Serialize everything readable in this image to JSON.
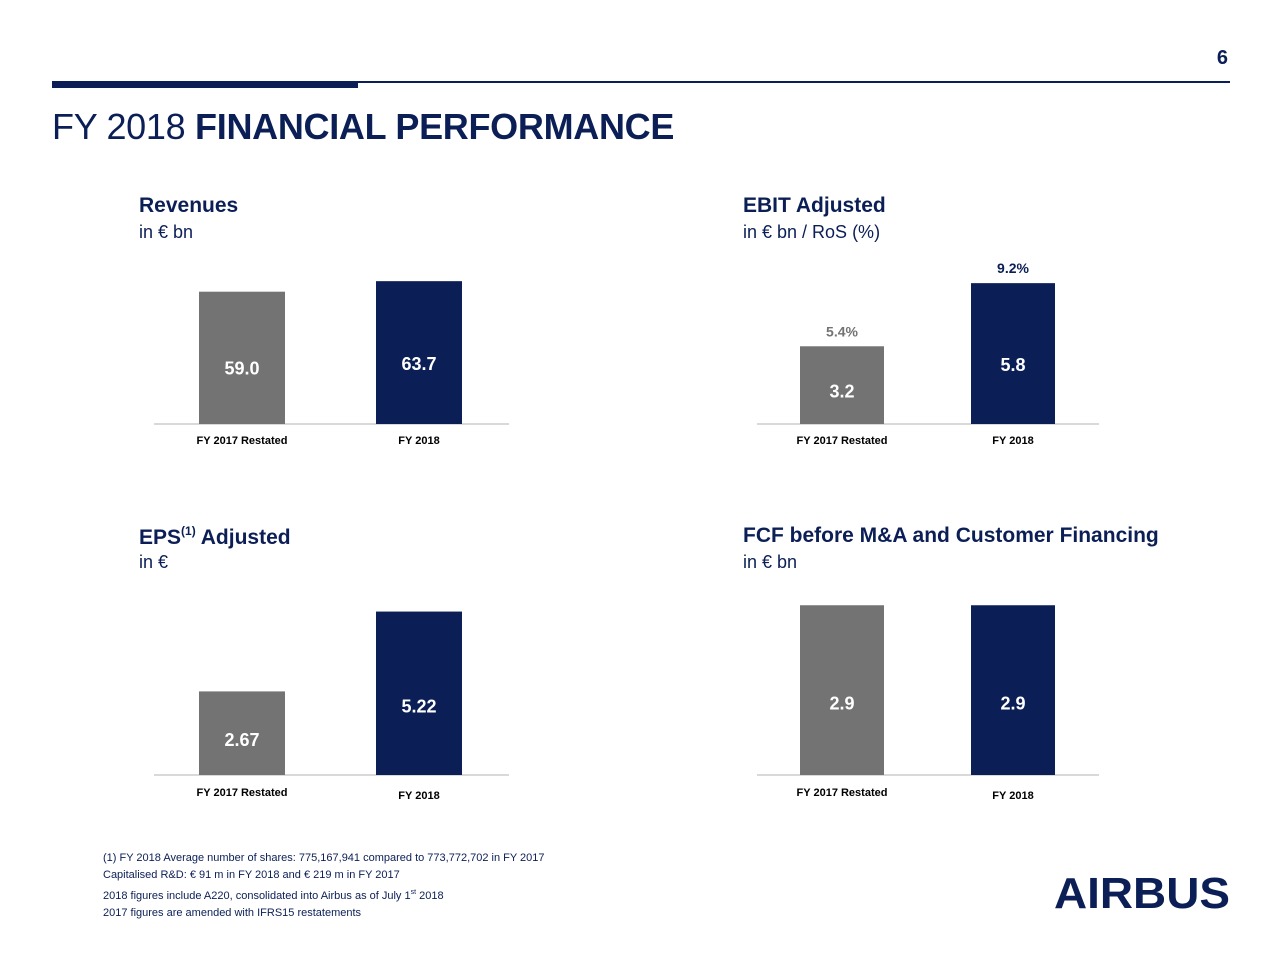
{
  "page": {
    "number": "6"
  },
  "title": {
    "prefix": "FY 2018",
    "emphasis": "FINANCIAL PERFORMANCE"
  },
  "colors": {
    "navy": "#0b1f56",
    "gray": "#737373",
    "axis": "#d9d9d9"
  },
  "charts": [
    {
      "title": "Revenues",
      "title_sup": "",
      "title_suffix": "",
      "unit": "in € bn",
      "chart_data": {
        "type": "bar",
        "categories": [
          "FY 2017 Restated",
          "FY 2018"
        ],
        "values": [
          59.0,
          63.7
        ],
        "value_labels": [
          "59.0",
          "63.7"
        ],
        "ratio_labels": [
          "",
          ""
        ],
        "colors": [
          "#737373",
          "#0b1f56"
        ],
        "ylim": [
          0,
          66
        ]
      }
    },
    {
      "title": "EBIT Adjusted",
      "title_sup": "",
      "title_suffix": "",
      "unit": "in € bn / RoS (%)",
      "chart_data": {
        "type": "bar",
        "categories": [
          "FY 2017 Restated",
          "FY 2018"
        ],
        "values": [
          3.2,
          5.8
        ],
        "value_labels": [
          "3.2",
          "5.8"
        ],
        "ratio_labels": [
          "5.4%",
          "9.2%"
        ],
        "colors": [
          "#737373",
          "#0b1f56"
        ],
        "ylim": [
          0,
          8.4
        ]
      }
    },
    {
      "title": "EPS",
      "title_sup": "(1)",
      "title_suffix": " Adjusted",
      "unit": "in €",
      "chart_data": {
        "type": "bar",
        "categories": [
          "FY 2017 Restated",
          "FY 2018"
        ],
        "values": [
          2.67,
          5.22
        ],
        "value_labels": [
          "2.67",
          "5.22"
        ],
        "ratio_labels": [
          "",
          ""
        ],
        "colors": [
          "#737373",
          "#0b1f56"
        ],
        "ylim": [
          0,
          8.4
        ]
      }
    },
    {
      "title": "FCF before M&A and Customer Financing",
      "title_sup": "",
      "title_suffix": "",
      "unit": "in € bn",
      "chart_data": {
        "type": "bar",
        "categories": [
          "FY 2017 Restated",
          "FY 2018"
        ],
        "values": [
          2.9,
          2.9
        ],
        "value_labels": [
          "2.9",
          "2.9"
        ],
        "ratio_labels": [
          "",
          ""
        ],
        "colors": [
          "#737373",
          "#0b1f56"
        ],
        "ylim": [
          0,
          4.1
        ]
      }
    }
  ],
  "footnotes": {
    "line1": "(1) FY 2018 Average number of shares: 775,167,941 compared to 773,772,702 in FY 2017",
    "line2": "Capitalised R&D: € 91 m in FY 2018 and € 219 m in FY 2017",
    "line3_a": "2018 figures include A220, consolidated into Airbus as of July 1",
    "line3_sup": "st",
    "line3_b": " 2018",
    "line4": "2017 figures are amended with IFRS15 restatements"
  },
  "logo": {
    "text": "AIRBUS"
  }
}
